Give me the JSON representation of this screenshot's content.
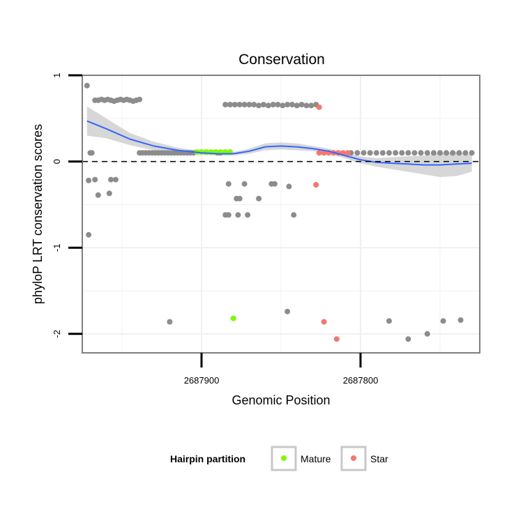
{
  "chart_data": {
    "type": "scatter",
    "title": "Conservation",
    "xlabel": "Genomic Position",
    "ylabel": "phyloP LRT conservation scores",
    "x_reversed": true,
    "xlim": [
      2687975,
      2687725
    ],
    "ylim": [
      -2.22,
      1.0
    ],
    "x_ticks": [
      2687900,
      2687800
    ],
    "x_tick_labels": [
      "2687900",
      "2687800"
    ],
    "y_ticks": [
      -2,
      -1,
      0,
      1
    ],
    "y_tick_labels": [
      "-2",
      "-1",
      "0",
      "1"
    ],
    "reference_line": {
      "y": 0,
      "style": "dashed"
    },
    "legend": {
      "title": "Hairpin partition",
      "position": "bottom",
      "entries": [
        {
          "label": "Mature",
          "color": "#7CFC00"
        },
        {
          "label": "Star",
          "color": "#F8766D"
        }
      ]
    },
    "colors": {
      "other": "#8c8c8c",
      "smooth_line": "#3366FF",
      "confidence_band": "#d3d3d3",
      "grid": "#f0f0f0",
      "panel_border": "#7f7f7f"
    },
    "series": [
      {
        "name": "Other",
        "color": "#8c8c8c",
        "points": [
          {
            "x": 2687972,
            "y": 0.88
          },
          {
            "x": 2687970,
            "y": 0.1
          },
          {
            "x": 2687969,
            "y": 0.1
          },
          {
            "x": 2687971,
            "y": -0.85
          },
          {
            "x": 2687971,
            "y": -0.22
          },
          {
            "x": 2687967,
            "y": -0.21
          },
          {
            "x": 2687965,
            "y": -0.39
          },
          {
            "x": 2687958,
            "y": -0.37
          },
          {
            "x": 2687957,
            "y": -0.21
          },
          {
            "x": 2687954,
            "y": -0.21
          },
          {
            "x": 2687920,
            "y": -1.86
          },
          {
            "x": 2687967,
            "y": 0.71
          },
          {
            "x": 2687965,
            "y": 0.71
          },
          {
            "x": 2687963,
            "y": 0.72
          },
          {
            "x": 2687961,
            "y": 0.71
          },
          {
            "x": 2687959,
            "y": 0.72
          },
          {
            "x": 2687957,
            "y": 0.71
          },
          {
            "x": 2687955,
            "y": 0.7
          },
          {
            "x": 2687953,
            "y": 0.71
          },
          {
            "x": 2687951,
            "y": 0.72
          },
          {
            "x": 2687949,
            "y": 0.71
          },
          {
            "x": 2687947,
            "y": 0.72
          },
          {
            "x": 2687945,
            "y": 0.71
          },
          {
            "x": 2687943,
            "y": 0.7
          },
          {
            "x": 2687941,
            "y": 0.71
          },
          {
            "x": 2687939,
            "y": 0.72
          },
          {
            "x": 2687939,
            "y": 0.1
          },
          {
            "x": 2687937,
            "y": 0.1
          },
          {
            "x": 2687935,
            "y": 0.1
          },
          {
            "x": 2687933,
            "y": 0.1
          },
          {
            "x": 2687931,
            "y": 0.1
          },
          {
            "x": 2687929,
            "y": 0.1
          },
          {
            "x": 2687927,
            "y": 0.1
          },
          {
            "x": 2687925,
            "y": 0.1
          },
          {
            "x": 2687923,
            "y": 0.1
          },
          {
            "x": 2687921,
            "y": 0.1
          },
          {
            "x": 2687919,
            "y": 0.1
          },
          {
            "x": 2687917,
            "y": 0.1
          },
          {
            "x": 2687915,
            "y": 0.1
          },
          {
            "x": 2687913,
            "y": 0.1
          },
          {
            "x": 2687911,
            "y": 0.1
          },
          {
            "x": 2687909,
            "y": 0.1
          },
          {
            "x": 2687907,
            "y": 0.1
          },
          {
            "x": 2687905,
            "y": 0.1
          },
          {
            "x": 2687890,
            "y": 0.1
          },
          {
            "x": 2687888,
            "y": 0.1
          },
          {
            "x": 2687885,
            "y": 0.66
          },
          {
            "x": 2687882,
            "y": 0.66
          },
          {
            "x": 2687879,
            "y": 0.66
          },
          {
            "x": 2687876,
            "y": 0.66
          },
          {
            "x": 2687873,
            "y": 0.66
          },
          {
            "x": 2687870,
            "y": 0.66
          },
          {
            "x": 2687867,
            "y": 0.66
          },
          {
            "x": 2687864,
            "y": 0.65
          },
          {
            "x": 2687861,
            "y": 0.66
          },
          {
            "x": 2687858,
            "y": 0.65
          },
          {
            "x": 2687855,
            "y": 0.66
          },
          {
            "x": 2687852,
            "y": 0.66
          },
          {
            "x": 2687849,
            "y": 0.65
          },
          {
            "x": 2687846,
            "y": 0.66
          },
          {
            "x": 2687843,
            "y": 0.66
          },
          {
            "x": 2687840,
            "y": 0.65
          },
          {
            "x": 2687837,
            "y": 0.66
          },
          {
            "x": 2687834,
            "y": 0.65
          },
          {
            "x": 2687831,
            "y": 0.65
          },
          {
            "x": 2687828,
            "y": 0.66
          },
          {
            "x": 2687883,
            "y": -0.26
          },
          {
            "x": 2687873,
            "y": -0.26
          },
          {
            "x": 2687856,
            "y": -0.26
          },
          {
            "x": 2687854,
            "y": -0.26
          },
          {
            "x": 2687878,
            "y": -0.43
          },
          {
            "x": 2687876,
            "y": -0.43
          },
          {
            "x": 2687864,
            "y": -0.43
          },
          {
            "x": 2687885,
            "y": -0.62
          },
          {
            "x": 2687883,
            "y": -0.62
          },
          {
            "x": 2687877,
            "y": -0.62
          },
          {
            "x": 2687871,
            "y": -0.62
          },
          {
            "x": 2687845,
            "y": -0.29
          },
          {
            "x": 2687842,
            "y": -0.62
          },
          {
            "x": 2687846,
            "y": -1.74
          },
          {
            "x": 2687806,
            "y": 0.1
          },
          {
            "x": 2687802,
            "y": 0.1
          },
          {
            "x": 2687798,
            "y": 0.1
          },
          {
            "x": 2687794,
            "y": 0.1
          },
          {
            "x": 2687790,
            "y": 0.1
          },
          {
            "x": 2687786,
            "y": 0.1
          },
          {
            "x": 2687782,
            "y": 0.1
          },
          {
            "x": 2687778,
            "y": 0.1
          },
          {
            "x": 2687774,
            "y": 0.1
          },
          {
            "x": 2687770,
            "y": 0.1
          },
          {
            "x": 2687766,
            "y": 0.1
          },
          {
            "x": 2687762,
            "y": 0.1
          },
          {
            "x": 2687758,
            "y": 0.1
          },
          {
            "x": 2687754,
            "y": 0.1
          },
          {
            "x": 2687750,
            "y": 0.1
          },
          {
            "x": 2687746,
            "y": 0.1
          },
          {
            "x": 2687742,
            "y": 0.1
          },
          {
            "x": 2687738,
            "y": 0.1
          },
          {
            "x": 2687734,
            "y": 0.1
          },
          {
            "x": 2687730,
            "y": 0.1
          },
          {
            "x": 2687782,
            "y": -1.85
          },
          {
            "x": 2687770,
            "y": -2.06
          },
          {
            "x": 2687758,
            "y": -2.0
          },
          {
            "x": 2687748,
            "y": -1.85
          },
          {
            "x": 2687737,
            "y": -1.84
          }
        ]
      },
      {
        "name": "Mature",
        "color": "#7CFC00",
        "points": [
          {
            "x": 2687903,
            "y": 0.11
          },
          {
            "x": 2687900,
            "y": 0.11
          },
          {
            "x": 2687897,
            "y": 0.11
          },
          {
            "x": 2687894,
            "y": 0.11
          },
          {
            "x": 2687891,
            "y": 0.11
          },
          {
            "x": 2687888,
            "y": 0.11
          },
          {
            "x": 2687885,
            "y": 0.11
          },
          {
            "x": 2687882,
            "y": 0.11
          },
          {
            "x": 2687880,
            "y": -1.82
          }
        ]
      },
      {
        "name": "Star",
        "color": "#F8766D",
        "points": [
          {
            "x": 2687826,
            "y": 0.63
          },
          {
            "x": 2687828,
            "y": -0.27
          },
          {
            "x": 2687823,
            "y": -1.86
          },
          {
            "x": 2687815,
            "y": -2.06
          },
          {
            "x": 2687826,
            "y": 0.1
          },
          {
            "x": 2687823,
            "y": 0.1
          },
          {
            "x": 2687820,
            "y": 0.1
          },
          {
            "x": 2687817,
            "y": 0.1
          },
          {
            "x": 2687814,
            "y": 0.1
          },
          {
            "x": 2687811,
            "y": 0.1
          },
          {
            "x": 2687808,
            "y": 0.1
          }
        ]
      }
    ],
    "smooth": {
      "x": [
        2687972,
        2687960,
        2687945,
        2687930,
        2687915,
        2687900,
        2687890,
        2687880,
        2687870,
        2687860,
        2687850,
        2687840,
        2687830,
        2687820,
        2687810,
        2687800,
        2687790,
        2687780,
        2687770,
        2687760,
        2687750,
        2687740,
        2687730
      ],
      "y": [
        0.47,
        0.38,
        0.26,
        0.18,
        0.13,
        0.1,
        0.09,
        0.09,
        0.12,
        0.17,
        0.18,
        0.17,
        0.15,
        0.12,
        0.07,
        0.02,
        -0.01,
        -0.02,
        -0.03,
        -0.04,
        -0.04,
        -0.03,
        -0.02
      ],
      "lower": [
        0.3,
        0.27,
        0.19,
        0.13,
        0.1,
        0.08,
        0.07,
        0.07,
        0.09,
        0.13,
        0.14,
        0.13,
        0.12,
        0.09,
        0.04,
        -0.02,
        -0.06,
        -0.09,
        -0.12,
        -0.15,
        -0.18,
        -0.17,
        -0.12
      ],
      "upper": [
        0.64,
        0.5,
        0.33,
        0.23,
        0.16,
        0.12,
        0.11,
        0.11,
        0.15,
        0.21,
        0.22,
        0.21,
        0.18,
        0.15,
        0.1,
        0.06,
        0.04,
        0.05,
        0.06,
        0.07,
        0.1,
        0.11,
        0.08
      ]
    }
  }
}
